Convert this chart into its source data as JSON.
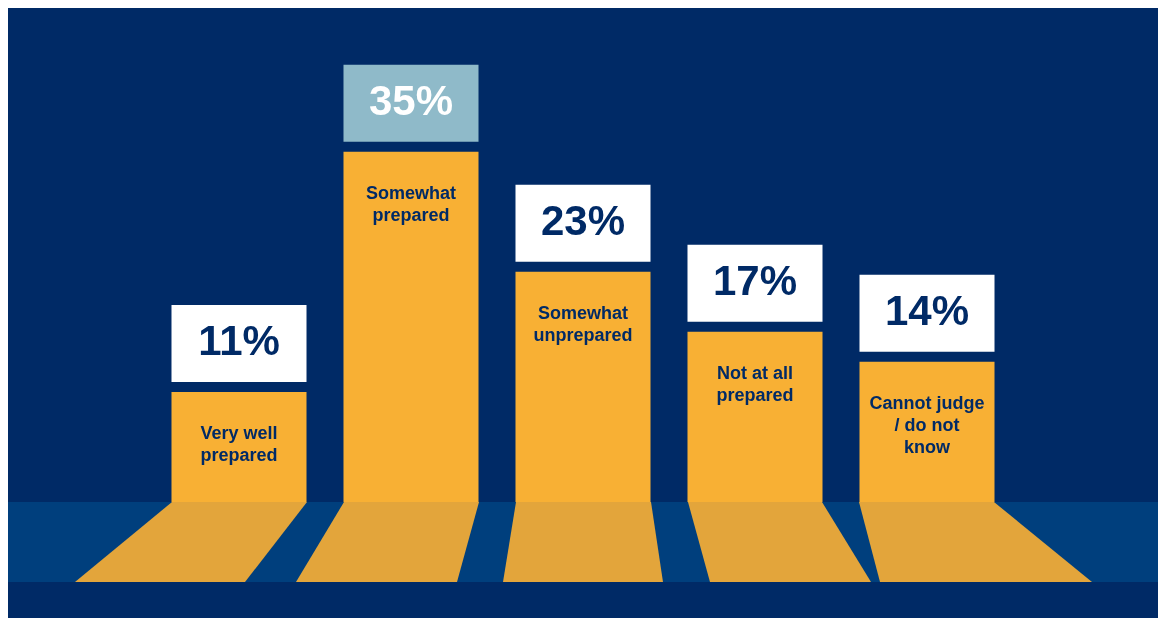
{
  "chart_data": {
    "type": "bar",
    "categories": [
      "Very well prepared",
      "Somewhat prepared",
      "Somewhat unprepared",
      "Not at all prepared",
      "Cannot judge / do not know"
    ],
    "values": [
      11,
      35,
      23,
      17,
      14
    ],
    "value_labels": [
      "11%",
      "35%",
      "23%",
      "17%",
      "14%"
    ],
    "color": "#f8b034",
    "legend": false
  }
}
